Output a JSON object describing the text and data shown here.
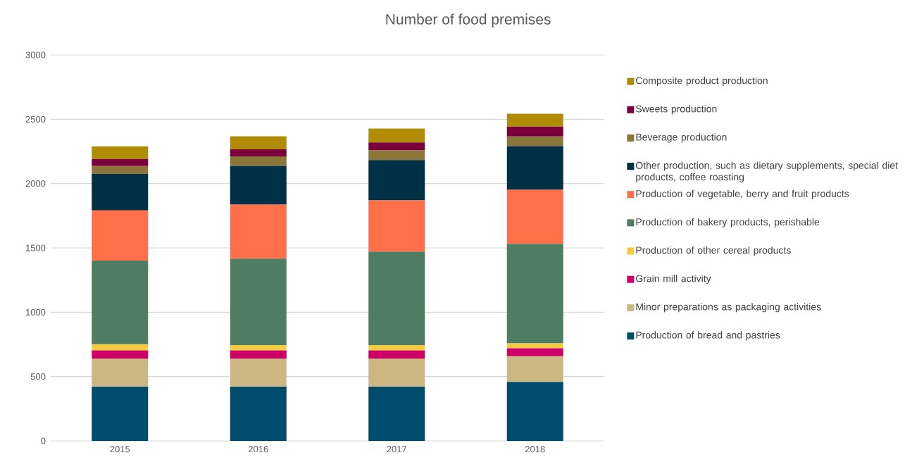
{
  "chart_data": {
    "type": "bar",
    "title": "Number of food premises",
    "stacked": true,
    "categories": [
      "2015",
      "2016",
      "2017",
      "2018"
    ],
    "series": [
      {
        "name": "Production of bread and pastries",
        "color": "#004c6d",
        "values": [
          422,
          422,
          422,
          459
        ]
      },
      {
        "name": "Minor preparations as packaging activities",
        "color": "#ccb784",
        "values": [
          219,
          219,
          219,
          199
        ]
      },
      {
        "name": "Grain mill activity",
        "color": "#cc0066",
        "values": [
          62,
          62,
          62,
          62
        ]
      },
      {
        "name": "Production of other cereal products",
        "color": "#f5cc3d",
        "values": [
          48,
          41,
          41,
          38
        ]
      },
      {
        "name": "Production of bakery products, perishable",
        "color": "#4e7d63",
        "values": [
          650,
          672,
          727,
          773
        ]
      },
      {
        "name": "Production of vegetable, berry and fruit products",
        "color": "#ff6f4a",
        "values": [
          391,
          420,
          398,
          422
        ]
      },
      {
        "name": "Other production, such as dietary supplements, special diet products, coffee roasting",
        "color": "#003045",
        "values": [
          283,
          302,
          314,
          338
        ]
      },
      {
        "name": "Beverage production",
        "color": "#8c7539",
        "values": [
          61,
          74,
          75,
          75
        ]
      },
      {
        "name": "Sweets production",
        "color": "#7a003c",
        "values": [
          55,
          55,
          62,
          77
        ]
      },
      {
        "name": "Composite product production",
        "color": "#b08c05",
        "values": [
          98,
          101,
          108,
          100
        ]
      }
    ],
    "ylim": [
      0,
      3000
    ],
    "yticks": [
      0,
      500,
      1000,
      1500,
      2000,
      2500,
      3000
    ],
    "grid": "y",
    "legend": "right"
  }
}
